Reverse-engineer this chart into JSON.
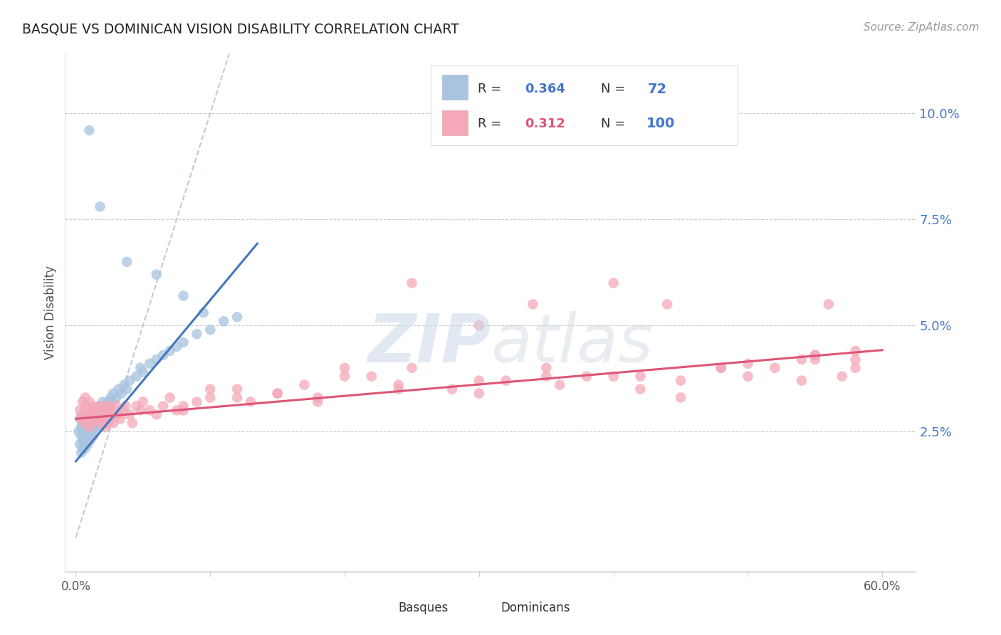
{
  "title": "BASQUE VS DOMINICAN VISION DISABILITY CORRELATION CHART",
  "source": "Source: ZipAtlas.com",
  "ylabel": "Vision Disability",
  "ytick_labels": [
    "2.5%",
    "5.0%",
    "7.5%",
    "10.0%"
  ],
  "ytick_values": [
    0.025,
    0.05,
    0.075,
    0.1
  ],
  "xtick_labels": [
    "0.0%",
    "60.0%"
  ],
  "xlim": [
    0.0,
    0.6
  ],
  "ylim": [
    0.0,
    0.112
  ],
  "legend_basque_R": "0.364",
  "legend_basque_N": "72",
  "legend_dominican_R": "0.312",
  "legend_dominican_N": "100",
  "basque_color": "#a8c4e0",
  "dominican_color": "#f4a8b8",
  "basque_line_color": "#4477bb",
  "dominican_line_color": "#dd5577",
  "diagonal_color": "#bbccdd",
  "watermark_zip": "ZIP",
  "watermark_atlas": "atlas",
  "legend_R_color": "#000000",
  "legend_val_color": "#4477cc",
  "legend_N_color": "#000000"
}
